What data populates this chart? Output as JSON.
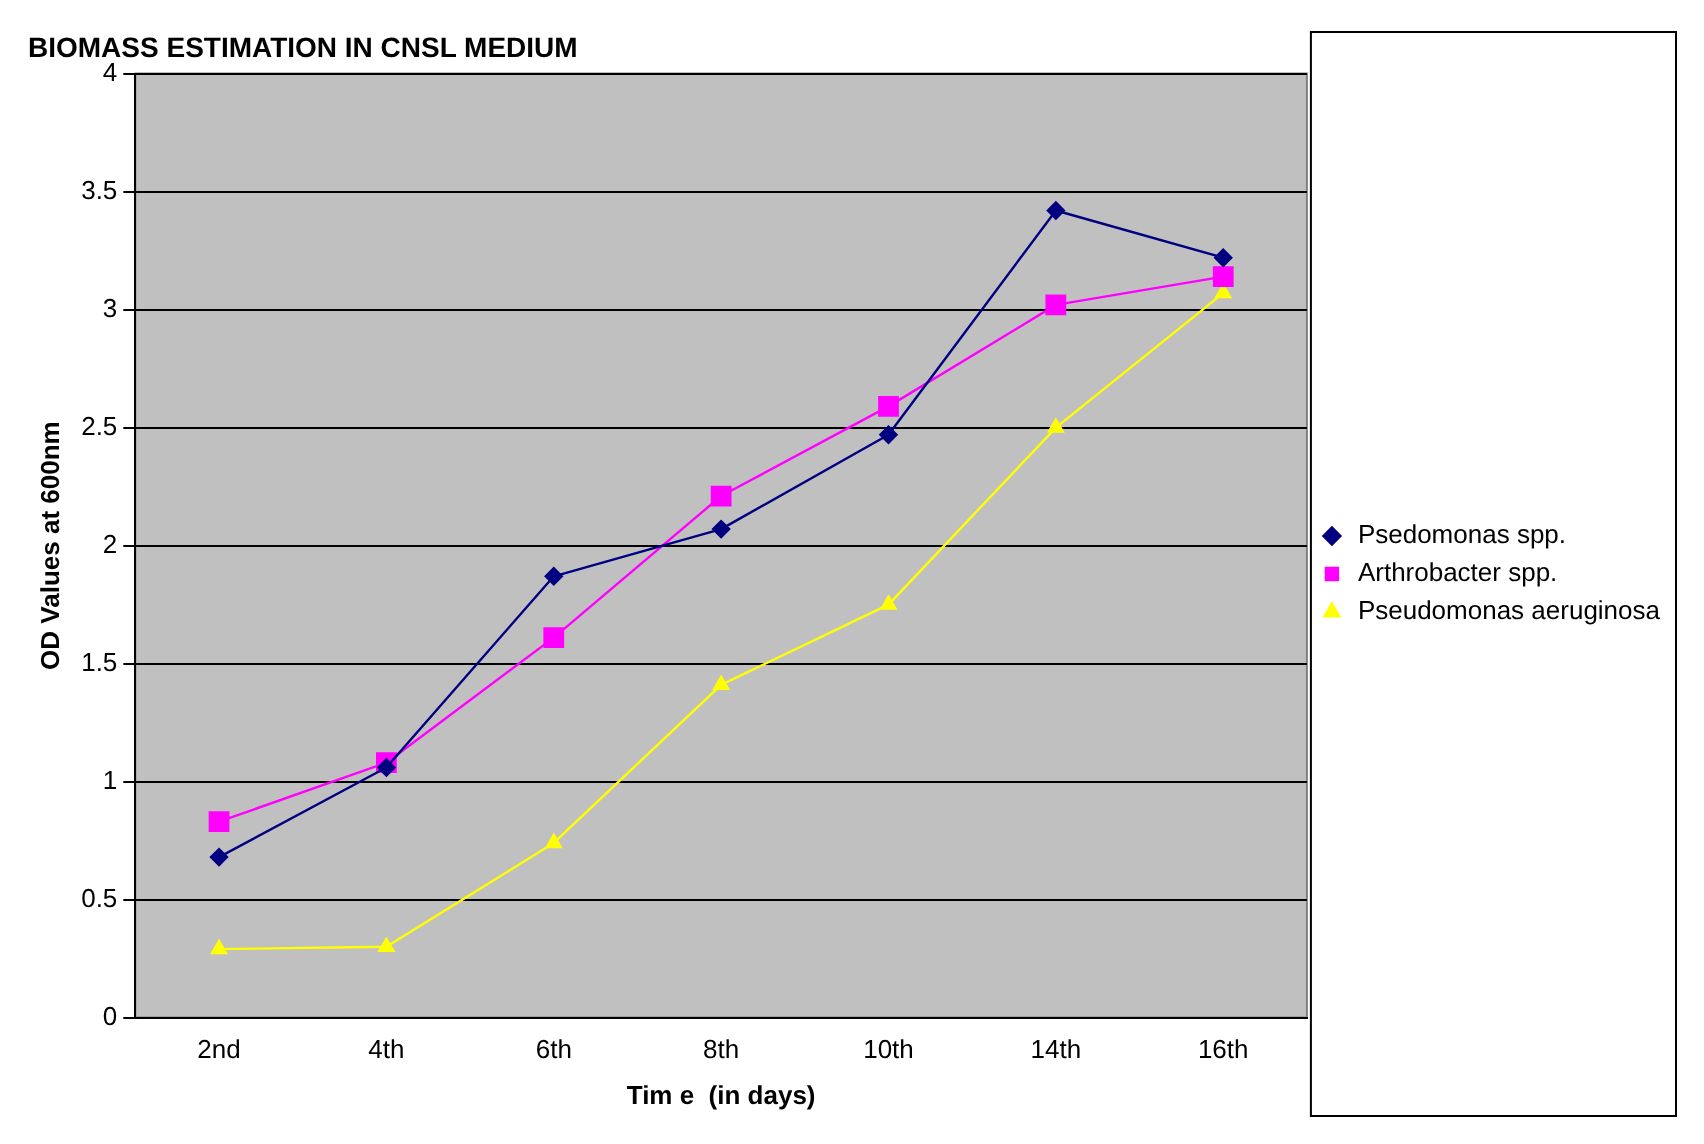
{
  "chart_data": {
    "type": "line",
    "title": "BIOMASS ESTIMATION IN CNSL MEDIUM",
    "xlabel": "Tim e  (in days)",
    "ylabel": "OD Values at 600nm",
    "categories": [
      "2nd",
      "4th",
      "6th",
      "8th",
      "10th",
      "14th",
      "16th"
    ],
    "series": [
      {
        "name": "Psedomonas spp.",
        "color": "#000080",
        "marker": "diamond",
        "values": [
          0.68,
          1.06,
          1.87,
          2.07,
          2.47,
          3.42,
          3.22
        ]
      },
      {
        "name": "Arthrobacter spp.",
        "color": "#ff00ff",
        "marker": "square",
        "values": [
          0.83,
          1.08,
          1.61,
          2.21,
          2.59,
          3.02,
          3.14
        ]
      },
      {
        "name": "Pseudomonas aeruginosa",
        "color": "#ffff00",
        "marker": "triangle",
        "values": [
          0.29,
          0.3,
          0.74,
          1.41,
          1.75,
          2.5,
          3.07
        ]
      }
    ],
    "ylim": [
      0,
      4
    ],
    "yticks": [
      0,
      0.5,
      1,
      1.5,
      2,
      2.5,
      3,
      3.5,
      4
    ],
    "grid": "y",
    "legend": "right",
    "line_style": "solid"
  }
}
